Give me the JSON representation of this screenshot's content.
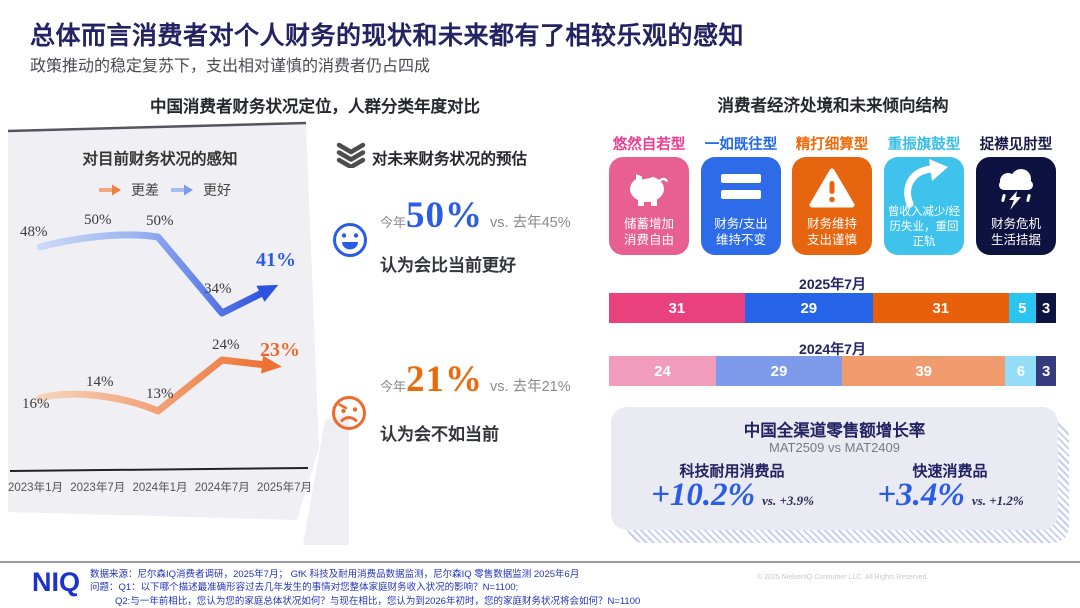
{
  "page": {
    "title": "总体而言消费者对个人财务的现状和未来都有了相较乐观的感知",
    "subtitle": "政策推动的稳定复苏下，支出相对谨慎的消费者仍占四成"
  },
  "left_section": {
    "header": "中国消费者财务状况定位，人群分类年度对比",
    "panel_title": "对目前财务状况的感知",
    "legend": {
      "worse": "更差",
      "better": "更好"
    },
    "point_labels": {
      "better": [
        "48%",
        "50%",
        "50%",
        "34%",
        "41%"
      ],
      "worse": [
        "16%",
        "14%",
        "13%",
        "24%",
        "23%"
      ]
    }
  },
  "middle_section": {
    "heading": "对未来财务状况的预估",
    "better": {
      "prefix": "今年",
      "value": "50%",
      "vs": "vs. 去年45%",
      "desc": "认为会比当前更好"
    },
    "worse": {
      "prefix": "今年",
      "value": "21%",
      "vs": "vs. 去年21%",
      "desc": "认为会不如当前"
    }
  },
  "right_section": {
    "header": "消费者经济处境和未来倾向结构",
    "types": [
      {
        "label": "悠然自若型",
        "card_text": "储蓄增加\n消费自由",
        "color": "#E7608F",
        "label_color": "#F03A8C"
      },
      {
        "label": "一如既往型",
        "card_text": "财务/支出\n维持不变",
        "color": "#2E6BE8",
        "label_color": "#2268E8"
      },
      {
        "label": "精打细算型",
        "card_text": "财务维持\n支出谨慎",
        "color": "#E8650F",
        "label_color": "#F06A0A"
      },
      {
        "label": "重振旗鼓型",
        "card_text": "曾收入减少/经\n历失业，重回\n正轨",
        "color": "#3FC3EC",
        "label_color": "#38BEE8"
      },
      {
        "label": "捉襟见肘型",
        "card_text": "财务危机\n生活拮据",
        "color": "#0E1240",
        "label_color": "#191947"
      }
    ],
    "bar_rows": [
      {
        "label": "2025年7月",
        "colors": [
          "#E8417E",
          "#2563E8",
          "#E8600C",
          "#29C5F0",
          "#0D1442"
        ]
      },
      {
        "label": "2024年7月",
        "colors": [
          "#F29CBC",
          "#7E9BEB",
          "#F09C6E",
          "#93DDF6",
          "#353B7E"
        ]
      }
    ],
    "growth": {
      "title": "中国全渠道零售额增长率",
      "subtitle": "MAT2509 vs MAT2409",
      "items": [
        {
          "label": "科技耐用消费品",
          "value": "+10.2%",
          "vs": "vs. +3.9%"
        },
        {
          "label": "快速消费品",
          "value": "+3.4%",
          "vs": "vs. +1.2%"
        }
      ]
    }
  },
  "footer": {
    "logo": "NIQ",
    "lines": [
      "数据来源：尼尔森IQ消费者调研，2025年7月；  GfK 科技及耐用消费品数据监测，尼尔森IQ 零售数据监测  2025年6月",
      "问题：Q1：以下哪个描述最准确形容过去几年发生的事情对您整体家庭财务收入状况的影响？N=1100;",
      "Q2:与一年前相比，您认为您的家庭总体状况如何？与现在相比，您认为到2026年初时，您的家庭财务状况将会如何？N=1100"
    ],
    "copyright": "© 2025 NielsenIQ Consumer LLC. All Rights Reserved."
  },
  "chart_data": [
    {
      "type": "line",
      "title": "对目前财务状况的感知",
      "x": [
        "2023年1月",
        "2023年7月",
        "2024年1月",
        "2024年7月",
        "2025年7月"
      ],
      "series": [
        {
          "name": "更好",
          "color": "#2E52E0",
          "values": [
            48,
            50,
            50,
            34,
            41
          ]
        },
        {
          "name": "更差",
          "color": "#ED7133",
          "values": [
            16,
            14,
            13,
            24,
            23
          ]
        }
      ],
      "unit": "%",
      "legend_position": "top",
      "grid": false
    },
    {
      "type": "bar",
      "stacked": true,
      "orientation": "horizontal",
      "unit": "%",
      "categories": [
        "悠然自若型",
        "一如既往型",
        "精打细算型",
        "重振旗鼓型",
        "捉襟见肘型"
      ],
      "rows": [
        {
          "label": "2025年7月",
          "values": [
            31,
            29,
            31,
            5,
            3
          ]
        },
        {
          "label": "2024年7月",
          "values": [
            24,
            29,
            39,
            6,
            3
          ]
        }
      ]
    }
  ],
  "icons": {
    "future_heading": "triple-chevron-down",
    "better_mood": "smiley-face",
    "worse_mood": "frowny-face",
    "legend_worse": "arrow-right-orange",
    "legend_better": "arrow-right-blue",
    "type_cards": [
      "piggy-bank",
      "equals-sign",
      "warning-triangle",
      "recovery-arrow",
      "storm-cloud-rain"
    ]
  }
}
